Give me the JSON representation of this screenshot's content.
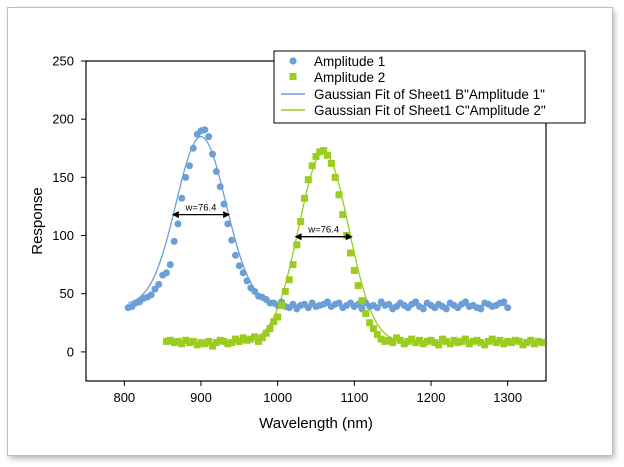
{
  "chart_data": {
    "type": "scatter",
    "xlabel": "Wavelength (nm)",
    "ylabel": "Response",
    "xlim": [
      750,
      1350
    ],
    "ylim": [
      -25,
      250
    ],
    "x_ticks": [
      800,
      900,
      1000,
      1100,
      1200,
      1300
    ],
    "y_ticks": [
      0,
      50,
      100,
      150,
      200,
      250
    ],
    "grid": false,
    "legend_position": "top-right",
    "series": [
      {
        "name": "Amplitude 1",
        "kind": "scatter",
        "marker": "circle",
        "color": "#6a9fd8",
        "x": [
          805,
          810,
          815,
          820,
          825,
          830,
          835,
          840,
          845,
          850,
          855,
          860,
          865,
          870,
          875,
          880,
          885,
          890,
          895,
          900,
          905,
          910,
          915,
          920,
          925,
          930,
          935,
          940,
          945,
          950,
          955,
          960,
          965,
          970,
          975,
          980,
          985,
          990,
          995,
          1000,
          1005,
          1010,
          1015,
          1020,
          1025,
          1030,
          1035,
          1040,
          1045,
          1050,
          1055,
          1060,
          1065,
          1070,
          1075,
          1080,
          1085,
          1090,
          1095,
          1100,
          1105,
          1110,
          1115,
          1120,
          1125,
          1130,
          1135,
          1140,
          1145,
          1150,
          1155,
          1160,
          1165,
          1170,
          1175,
          1180,
          1185,
          1190,
          1195,
          1200,
          1205,
          1210,
          1215,
          1220,
          1225,
          1230,
          1235,
          1240,
          1245,
          1250,
          1255,
          1260,
          1265,
          1270,
          1275,
          1280,
          1285,
          1290,
          1295,
          1300
        ],
        "y": [
          38,
          39,
          42,
          43,
          46,
          47,
          49,
          54,
          58,
          66,
          68,
          75,
          95,
          110,
          132,
          150,
          160,
          175,
          187,
          190,
          191,
          185,
          170,
          155,
          142,
          127,
          110,
          96,
          83,
          74,
          68,
          61,
          55,
          52,
          48,
          47,
          45,
          42,
          42,
          40,
          43,
          39,
          38,
          41,
          37,
          40,
          41,
          38,
          42,
          39,
          40,
          41,
          43,
          39,
          41,
          42,
          38,
          40,
          42,
          39,
          41,
          37,
          42,
          39,
          40,
          38,
          43,
          40,
          41,
          37,
          39,
          42,
          40,
          38,
          41,
          43,
          39,
          37,
          42,
          40,
          38,
          41,
          39,
          37,
          42,
          40,
          38,
          41,
          43,
          39,
          40,
          38,
          37,
          42,
          41,
          39,
          40,
          42,
          43,
          38
        ],
        "fit_name": "Gaussian Fit of Sheet1 B\"Amplitude 1\"",
        "fit": {
          "baseline": 40,
          "amplitude": 145,
          "center": 900,
          "width": 76.4
        }
      },
      {
        "name": "Amplitude 2",
        "kind": "scatter",
        "marker": "square",
        "color": "#9acd1f",
        "x": [
          855,
          860,
          865,
          870,
          875,
          880,
          885,
          890,
          895,
          900,
          905,
          910,
          915,
          920,
          925,
          930,
          935,
          940,
          945,
          950,
          955,
          960,
          965,
          970,
          975,
          980,
          985,
          990,
          995,
          1000,
          1005,
          1010,
          1015,
          1020,
          1025,
          1030,
          1035,
          1040,
          1045,
          1050,
          1055,
          1060,
          1065,
          1070,
          1075,
          1080,
          1085,
          1090,
          1095,
          1100,
          1105,
          1110,
          1115,
          1120,
          1125,
          1130,
          1135,
          1140,
          1145,
          1150,
          1155,
          1160,
          1165,
          1170,
          1175,
          1180,
          1185,
          1190,
          1195,
          1200,
          1205,
          1210,
          1215,
          1220,
          1225,
          1230,
          1235,
          1240,
          1245,
          1250,
          1255,
          1260,
          1265,
          1270,
          1275,
          1280,
          1285,
          1290,
          1295,
          1300,
          1305,
          1310,
          1315,
          1320,
          1325,
          1330,
          1335,
          1340,
          1345
        ],
        "y": [
          9,
          10,
          8,
          9,
          7,
          10,
          8,
          9,
          6,
          8,
          7,
          9,
          5,
          8,
          10,
          9,
          7,
          8,
          11,
          9,
          12,
          10,
          11,
          13,
          9,
          12,
          16,
          20,
          26,
          30,
          40,
          52,
          62,
          75,
          92,
          112,
          132,
          148,
          160,
          168,
          172,
          173,
          169,
          162,
          150,
          135,
          118,
          100,
          85,
          70,
          57,
          44,
          33,
          25,
          20,
          15,
          11,
          9,
          10,
          8,
          12,
          10,
          7,
          9,
          11,
          8,
          10,
          7,
          9,
          10,
          8,
          6,
          11,
          9,
          7,
          10,
          8,
          9,
          11,
          7,
          9,
          10,
          8,
          6,
          9,
          11,
          8,
          10,
          7,
          9,
          8,
          10,
          9,
          6,
          8,
          10,
          7,
          9,
          8
        ],
        "fit_name": "Gaussian Fit of Sheet1 C\"Amplitude 2\"",
        "fit": {
          "baseline": 8,
          "amplitude": 164,
          "center": 1060,
          "width": 76.4
        }
      }
    ],
    "annotations": [
      {
        "text": "w=76.4",
        "x_from": 862,
        "x_to": 938,
        "y": 118
      },
      {
        "text": "w=76.4",
        "x_from": 1022,
        "x_to": 1098,
        "y": 99
      }
    ]
  }
}
